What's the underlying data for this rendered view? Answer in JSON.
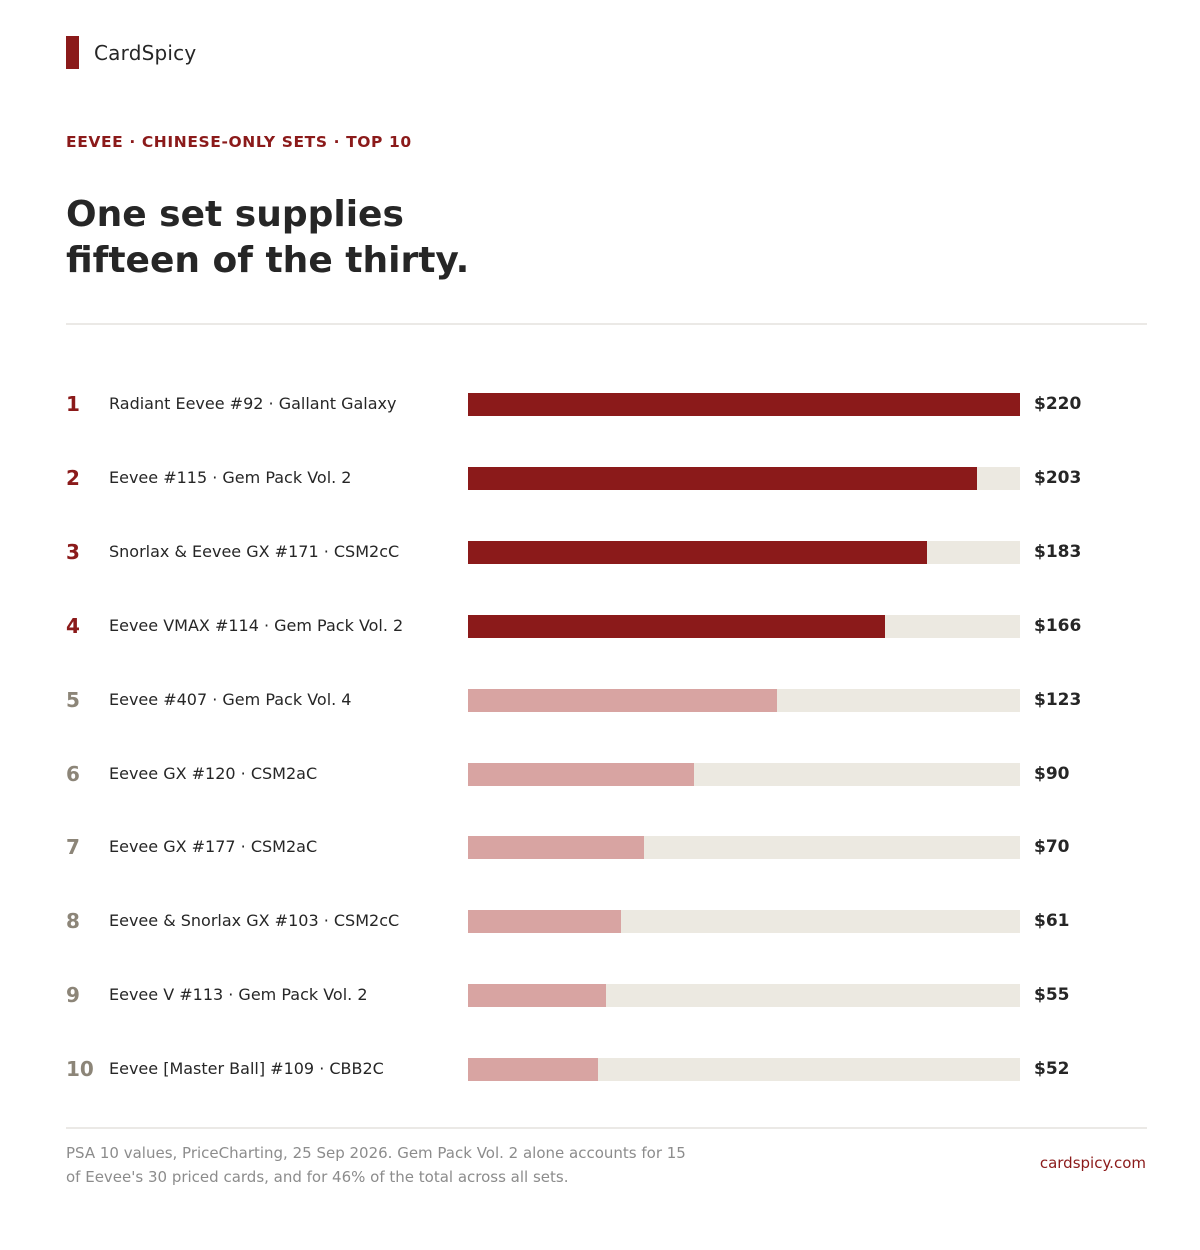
{
  "brand": {
    "name": "CardSpicy",
    "mark_color": "#8b1a1a"
  },
  "eyebrow": "EEVEE · CHINESE-ONLY SETS · TOP 10",
  "headline": {
    "line1": "One set supplies",
    "line2": "fifteen of the thirty."
  },
  "colors": {
    "accent": "#8b1a1a",
    "highlight_bar": "#8b1a1a",
    "muted_bar": "#d8a4a2",
    "track": "#ece9e1",
    "muted_rank": "#8c8578"
  },
  "chart_data": {
    "type": "bar",
    "orientation": "horizontal",
    "title": "",
    "xlabel": "",
    "ylabel": "",
    "xlim": [
      0,
      220
    ],
    "grid": false,
    "highlighted_ranks": [
      1,
      2,
      3,
      4
    ],
    "ranks": [
      "1",
      "2",
      "3",
      "4",
      "5",
      "6",
      "7",
      "8",
      "9",
      "10"
    ],
    "categories": [
      "Radiant Eevee #92 · Gallant Galaxy",
      "Eevee #115 · Gem Pack Vol. 2",
      "Snorlax & Eevee GX #171 · CSM2cC",
      "Eevee VMAX #114 · Gem Pack Vol. 2",
      "Eevee #407 · Gem Pack Vol. 4",
      "Eevee GX #120 · CSM2aC",
      "Eevee GX #177 · CSM2aC",
      "Eevee & Snorlax GX #103 · CSM2cC",
      "Eevee V #113 · Gem Pack Vol. 2",
      "Eevee [Master Ball] #109 · CBB2C"
    ],
    "values": [
      220,
      203,
      183,
      166,
      123,
      90,
      70,
      61,
      55,
      52
    ],
    "value_labels": [
      "$220",
      "$203",
      "$183",
      "$166",
      "$123",
      "$90",
      "$70",
      "$61",
      "$55",
      "$52"
    ]
  },
  "footer": {
    "note_line1": "PSA 10 values, PriceCharting, 25 Sep 2026. Gem Pack Vol. 2 alone accounts for 15",
    "note_line2": "of Eevee's 30 priced cards, and for 46% of the total across all sets.",
    "site": "cardspicy.com"
  }
}
